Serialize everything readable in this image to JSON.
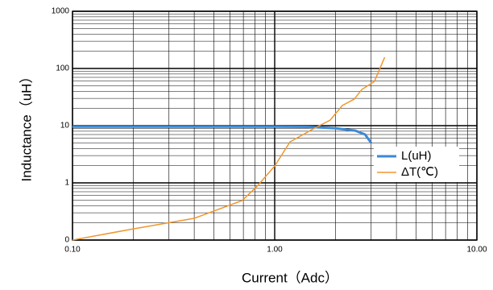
{
  "chart_data": {
    "type": "line",
    "xlabel": "Current（Adc）",
    "ylabel": "Inductance（uH）",
    "xscale": "log",
    "yscale": "log",
    "grid": true,
    "minor_grid": true,
    "xlim": [
      0.1,
      10
    ],
    "xticks": [
      {
        "value": 0.1,
        "label": "0.10"
      },
      {
        "value": 1,
        "label": "1.00"
      },
      {
        "value": 10,
        "label": "10.00"
      }
    ],
    "ylim": [
      0.1,
      1000
    ],
    "yticks": [
      {
        "value": 0.1,
        "label": "0"
      },
      1,
      10,
      100,
      1000
    ],
    "legend": "lower right",
    "series": [
      {
        "name": "L(uH)",
        "color": "#3a8ad6",
        "x": [
          0.1,
          0.5,
          1,
          1.5,
          2,
          2.5,
          2.8,
          3.0
        ],
        "values": [
          9.6,
          9.6,
          9.6,
          9.5,
          9.0,
          8.2,
          7,
          5
        ]
      },
      {
        "name": "ΔT(℃)",
        "color": "#f0962e",
        "x": [
          0.1,
          0.2,
          0.4,
          0.69,
          0.82,
          1.0,
          1.19,
          1.57,
          1.88,
          2.16,
          2.47,
          2.7,
          3.11,
          3.5
        ],
        "values": [
          0.1,
          0.157,
          0.24,
          0.49,
          0.88,
          1.97,
          5.2,
          9.0,
          12.5,
          22.5,
          29,
          43,
          59,
          157
        ]
      }
    ]
  }
}
